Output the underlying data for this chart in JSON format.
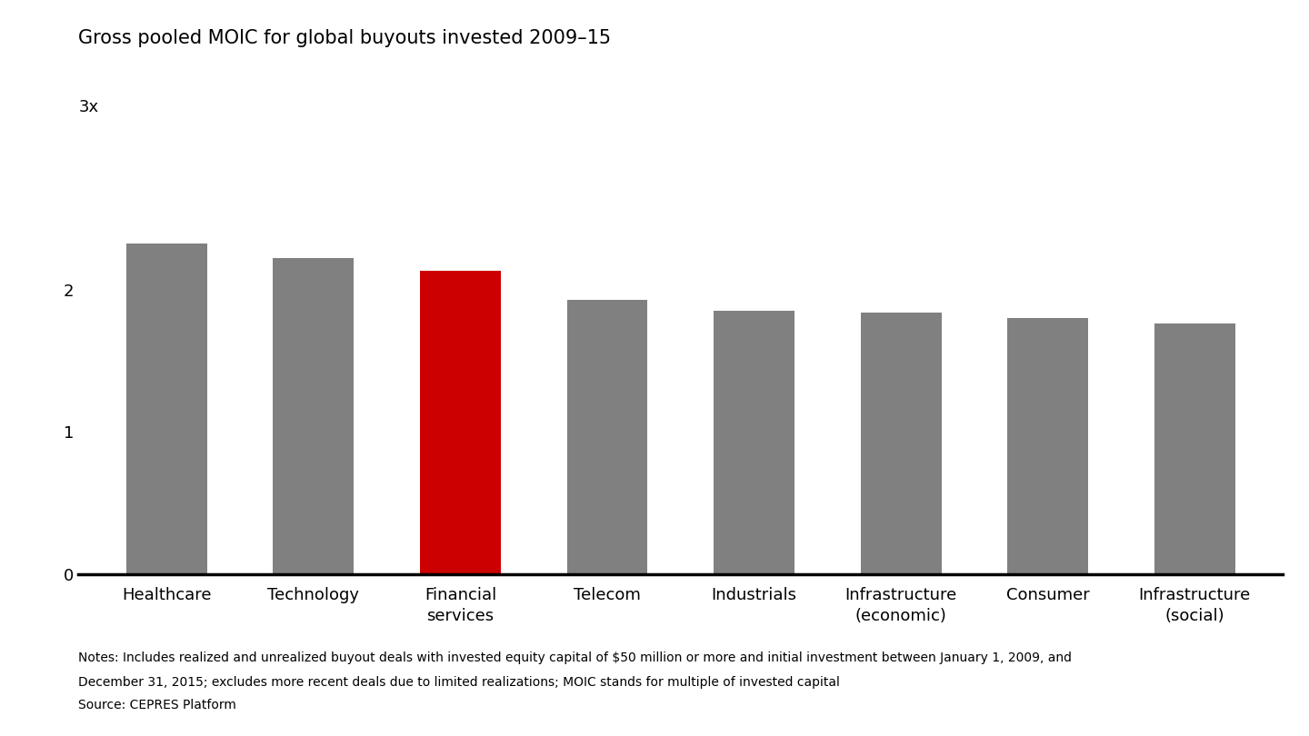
{
  "title": "Gross pooled MOIC for global buyouts invested 2009–15",
  "y_label_text": "3x",
  "categories": [
    "Healthcare",
    "Technology",
    "Financial\nservices",
    "Telecom",
    "Industrials",
    "Infrastructure\n(economic)",
    "Consumer",
    "Infrastructure\n(social)"
  ],
  "values": [
    2.32,
    2.22,
    2.13,
    1.93,
    1.85,
    1.84,
    1.8,
    1.76
  ],
  "bar_colors": [
    "#808080",
    "#808080",
    "#cc0000",
    "#808080",
    "#808080",
    "#808080",
    "#808080",
    "#808080"
  ],
  "ylim": [
    0,
    3.0
  ],
  "yticks": [
    0,
    1,
    2
  ],
  "background_color": "#ffffff",
  "title_fontsize": 15,
  "tick_fontsize": 13,
  "notes_line1": "Notes: Includes realized and unrealized buyout deals with invested equity capital of $50 million or more and initial investment between January 1, 2009, and",
  "notes_line2": "December 31, 2015; excludes more recent deals due to limited realizations; MOIC stands for multiple of invested capital",
  "source": "Source: CEPRES Platform"
}
